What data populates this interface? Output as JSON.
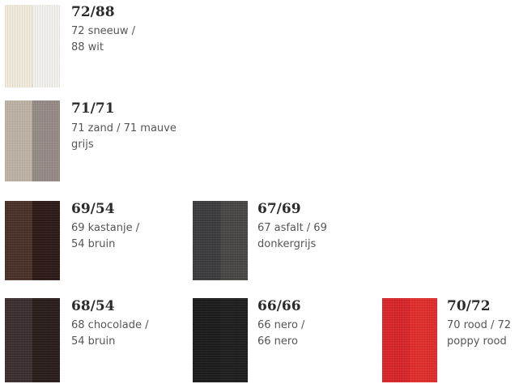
{
  "swatches": [
    {
      "code": "72/88",
      "line1": "72 sneeuw /",
      "line2": "88 wit",
      "colors": [
        "#efeadb",
        "#f1f0ec"
      ]
    },
    {
      "code": "71/71",
      "line1": "71 zand / 71 mauve",
      "line2": "grijs",
      "colors": [
        "#bcb1a4",
        "#958a86"
      ]
    },
    {
      "code": "69/54",
      "line1": "69 kastanje /",
      "line2": "54 bruin",
      "colors": [
        "#4a3129",
        "#2c1b18"
      ]
    },
    {
      "code": "67/69",
      "line1": "67 asfalt / 69",
      "line2": "donkergrijs",
      "colors": [
        "#3c3b3e",
        "#4a4644"
      ]
    },
    {
      "code": "68/54",
      "line1": "68 chocolade /",
      "line2": "54 bruin",
      "colors": [
        "#3b302f",
        "#2a1e1c"
      ]
    },
    {
      "code": "66/66",
      "line1": "66 nero /",
      "line2": "66 nero",
      "colors": [
        "#1c1c1d",
        "#1f1f1f"
      ]
    },
    {
      "code": "70/72",
      "line1": "70 rood / 72",
      "line2": "poppy rood",
      "colors": [
        "#d7262a",
        "#e02e2c"
      ]
    }
  ]
}
